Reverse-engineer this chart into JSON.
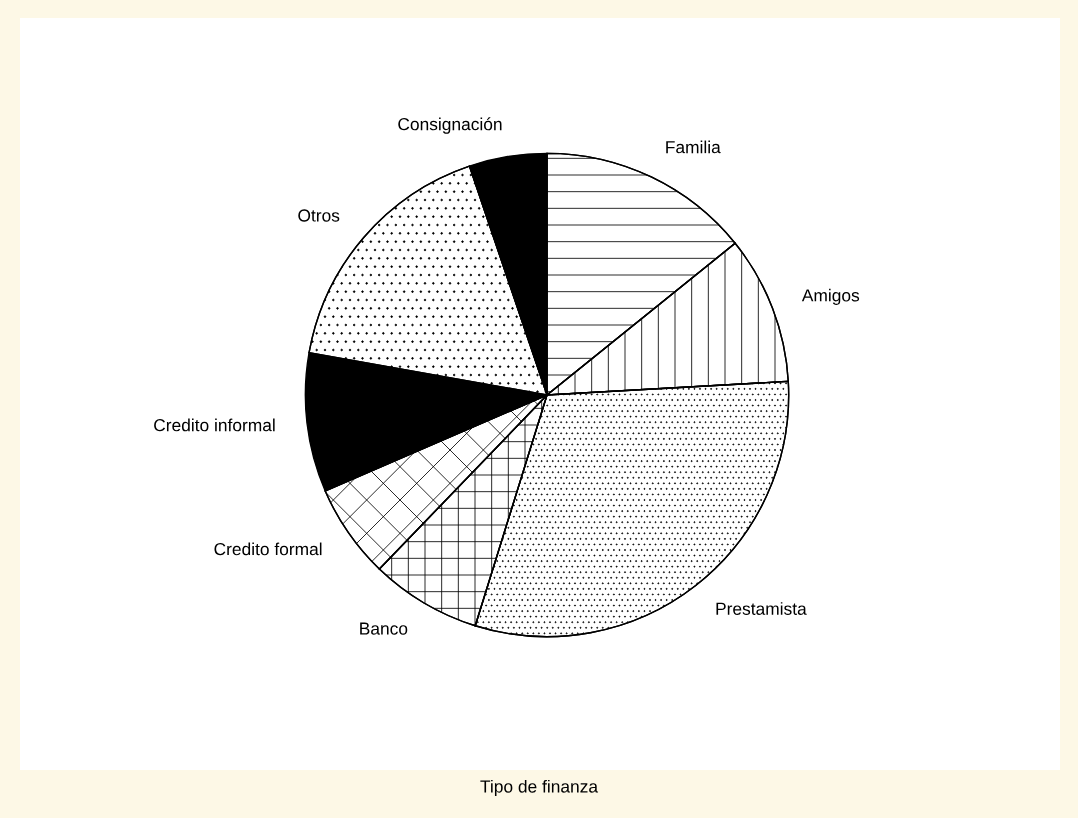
{
  "chart_data": {
    "type": "pie",
    "title": "Tipo de finanza",
    "categories": [
      "Familia",
      "Amigos",
      "Prestamista",
      "Banco",
      "Credito formal",
      "Credito informal",
      "Otros",
      "Consignación"
    ],
    "values": [
      14.2,
      9.9,
      30.7,
      7.4,
      6.3,
      9.3,
      17.0,
      5.2
    ],
    "colors": [
      "#ffffff",
      "#ffffff",
      "#ffffff",
      "#ffffff",
      "#ffffff",
      "#000000",
      "#ffffff",
      "#000000"
    ],
    "legend": false
  }
}
